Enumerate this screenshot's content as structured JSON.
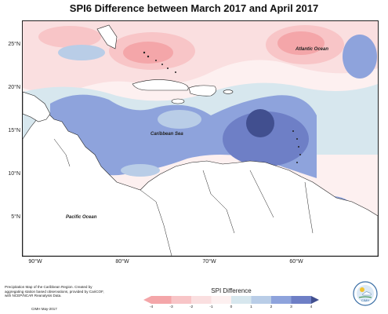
{
  "title": "SPI6 Difference between March 2017 and April 2017",
  "labels": {
    "atlantic": "Atlantic Ocean",
    "caribbean": "Caribbean Sea",
    "pacific": "Pacific Ocean"
  },
  "lat_ticks": [
    {
      "label": "25°N",
      "lat": 25
    },
    {
      "label": "20°N",
      "lat": 20
    },
    {
      "label": "15°N",
      "lat": 15
    },
    {
      "label": "10°N",
      "lat": 10
    },
    {
      "label": "5°N",
      "lat": 5
    }
  ],
  "lon_ticks": [
    {
      "label": "90°W",
      "lon": -90
    },
    {
      "label": "80°W",
      "lon": -80
    },
    {
      "label": "70°W",
      "lon": -70
    },
    {
      "label": "60°W",
      "lon": -60
    }
  ],
  "legend": {
    "title": "SPI Difference",
    "ticks": [
      "-4",
      "-3",
      "-2",
      "-1",
      "0",
      "1",
      "2",
      "3",
      "4"
    ],
    "colors": [
      "#f4a6a9",
      "#f8c5c7",
      "#fadfe0",
      "#fdf0f0",
      "#d7e7ee",
      "#b9cde7",
      "#8ea3dc",
      "#6e7fc6",
      "#414f8f"
    ]
  },
  "note": "Precipitation Map of the Caribbean Region. Created by aggregating station based observations, provided by CariCOF, with NCEP/NCAR Reanalysis Data.",
  "credit": "CIMH May-2017",
  "logo": {
    "name": "CIMH logo",
    "text": "CIMH"
  },
  "colors": {
    "strong_dry": "#f4a6a9",
    "dry": "#f8c5c7",
    "slight_dry": "#fadfe0",
    "neutral": "#d7e7ee",
    "wet": "#8ea3dc",
    "very_wet": "#6e7fc6",
    "extreme_wet": "#414f8f"
  }
}
